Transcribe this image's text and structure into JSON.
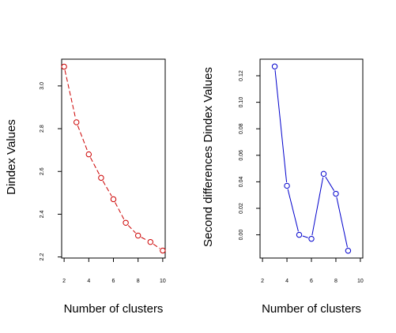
{
  "chart_data": [
    {
      "type": "line",
      "title": "",
      "xlabel": "Number of clusters",
      "ylabel": "Dindex Values",
      "x": [
        2,
        3,
        4,
        5,
        6,
        7,
        8,
        9,
        10
      ],
      "series": [
        {
          "values": [
            3.09,
            2.83,
            2.68,
            2.57,
            2.47,
            2.36,
            2.3,
            2.27,
            2.23
          ],
          "color": "#cc0000",
          "line_style": "dashed"
        }
      ],
      "xticks": [
        "2",
        "4",
        "6",
        "8",
        "10"
      ],
      "yticks": [
        "2.2",
        "2.4",
        "2.6",
        "2.8",
        "3.0"
      ],
      "xlim": [
        1.8,
        10.2
      ],
      "ylim": [
        2.195,
        3.125
      ],
      "grid": false
    },
    {
      "type": "line",
      "title": "",
      "xlabel": "Number of clusters",
      "ylabel": "Second differences Dindex Values",
      "x": [
        3,
        4,
        5,
        6,
        7,
        8,
        9
      ],
      "series": [
        {
          "values": [
            0.127,
            0.037,
            0.0,
            -0.003,
            0.046,
            0.031,
            -0.012
          ],
          "color": "#0000cc",
          "line_style": "solid"
        }
      ],
      "xticks": [
        "2",
        "4",
        "6",
        "8",
        "10"
      ],
      "yticks": [
        "0.00",
        "0.02",
        "0.04",
        "0.06",
        "0.08",
        "0.10",
        "0.12"
      ],
      "xlim": [
        1.8,
        10.2
      ],
      "ylim": [
        -0.0175,
        0.1325
      ],
      "grid": false
    }
  ]
}
